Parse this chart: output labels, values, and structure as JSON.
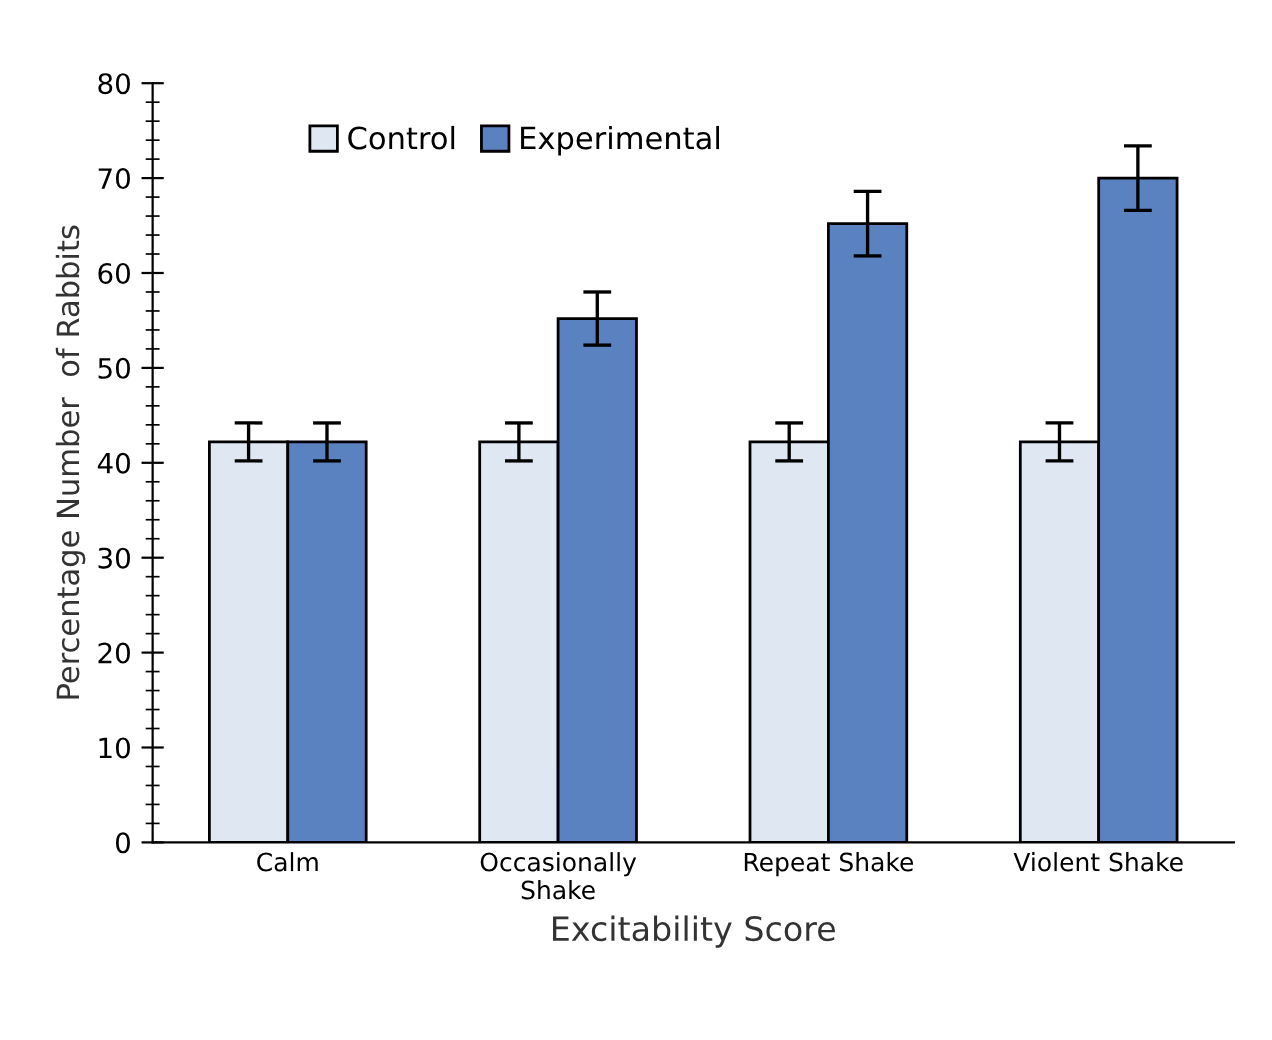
{
  "chart_data": {
    "type": "bar",
    "xlabel": "Excitability Score",
    "ylabel": "Percentage Number  of Rabbits",
    "categories": [
      "Calm",
      "Occasionally\nShake",
      "Repeat Shake",
      "Violent Shake"
    ],
    "series": [
      {
        "name": "Control",
        "color": "#dfe7f3",
        "values": [
          42.2,
          42.2,
          42.2,
          42.2
        ],
        "errors": [
          2,
          2,
          2,
          2
        ]
      },
      {
        "name": "Experimental",
        "color": "#5b82c0",
        "values": [
          42.2,
          55.2,
          65.2,
          70
        ],
        "errors": [
          2,
          2.8,
          3.4,
          3.4
        ]
      }
    ],
    "ylim": [
      0,
      80
    ],
    "yticks": [
      0,
      10,
      20,
      30,
      40,
      50,
      60,
      70,
      80
    ],
    "grid": false,
    "legend": "top left"
  }
}
